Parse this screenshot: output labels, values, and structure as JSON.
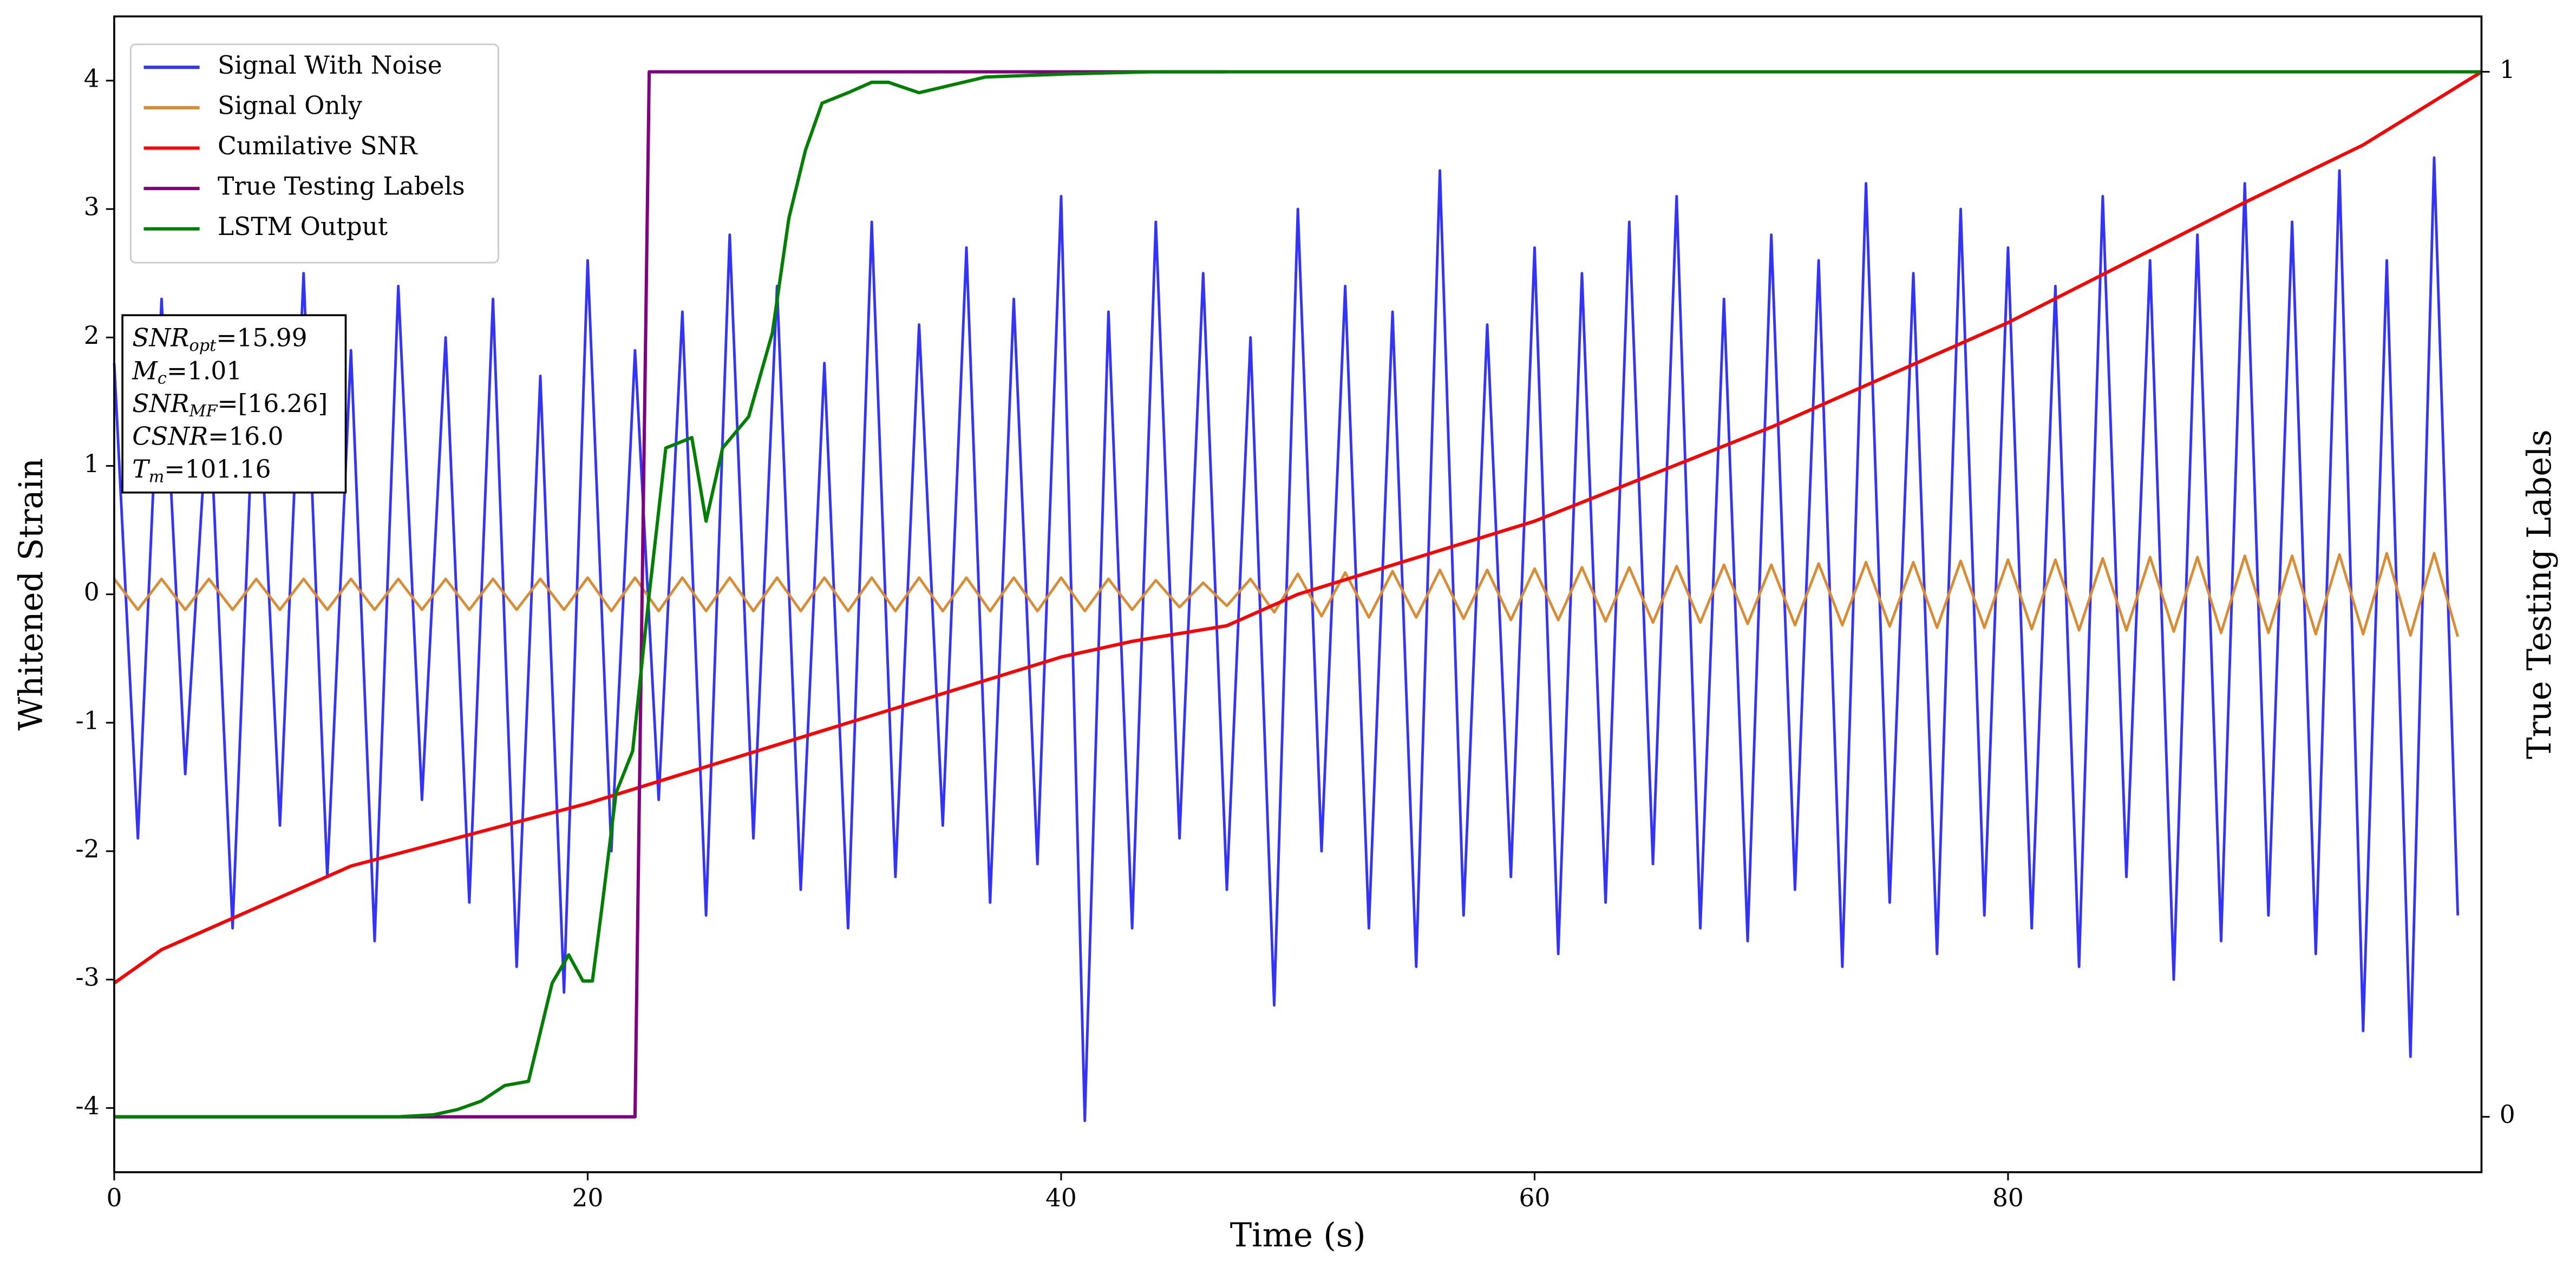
{
  "chart_data": {
    "type": "line",
    "xlabel": "Time (s)",
    "ylabel": "Whitened Strain",
    "y2label": "True Testing Labels",
    "xlim": [
      0,
      100
    ],
    "xticks": [
      0,
      20,
      40,
      60,
      80
    ],
    "ylim": [
      -4.5,
      4.5
    ],
    "yticks": [
      -4,
      -3,
      -2,
      -1,
      0,
      1,
      2,
      3,
      4
    ],
    "y2lim": [
      -0.053,
      1.053
    ],
    "y2ticks": [
      0,
      1
    ],
    "legend": "upper left",
    "annotation": [
      {
        "var": "SNR",
        "sub": "opt",
        "value": "=15.99"
      },
      {
        "var": "M",
        "sub": "c",
        "value": "=1.01"
      },
      {
        "var": "SNR",
        "sub": "MF",
        "value": "=[16.26]"
      },
      {
        "var": "CSNR",
        "value": "=16.0"
      },
      {
        "var": "T",
        "sub": "m",
        "value": "=101.16"
      }
    ],
    "series": [
      {
        "name": "Signal With Noise",
        "color": "#3333ff",
        "x": [
          0,
          1,
          2,
          3,
          4,
          5,
          6,
          7,
          8,
          9,
          10,
          11,
          12,
          13,
          14,
          15,
          16,
          17,
          18,
          19,
          20,
          21,
          22,
          23,
          24,
          25,
          26,
          27,
          28,
          29,
          30,
          31,
          32,
          33,
          34,
          35,
          36,
          37,
          38,
          39,
          40,
          41,
          42,
          43,
          44,
          45,
          46,
          47,
          48,
          49,
          50,
          51,
          52,
          53,
          54,
          55,
          56,
          57,
          58,
          59,
          60,
          61,
          62,
          63,
          64,
          65,
          66,
          67,
          68,
          69,
          70,
          71,
          72,
          73,
          74,
          75,
          76,
          77,
          78,
          79,
          80,
          81,
          82,
          83,
          84,
          85,
          86,
          87,
          88,
          89,
          90,
          91,
          92,
          93,
          94,
          95,
          96,
          97,
          98,
          99
        ],
        "values": [
          1.8,
          -1.9,
          2.3,
          -1.4,
          1.6,
          -2.6,
          2.1,
          -1.8,
          2.5,
          -2.2,
          1.9,
          -2.7,
          2.4,
          -1.6,
          2.0,
          -2.4,
          2.3,
          -2.9,
          1.7,
          -3.1,
          2.6,
          -2.0,
          1.9,
          -1.6,
          2.2,
          -2.5,
          2.8,
          -1.9,
          2.4,
          -2.3,
          1.8,
          -2.6,
          2.9,
          -2.2,
          2.1,
          -1.8,
          2.7,
          -2.4,
          2.3,
          -2.1,
          3.1,
          -4.1,
          2.2,
          -2.6,
          2.9,
          -1.9,
          2.5,
          -2.3,
          2.0,
          -3.2,
          3.0,
          -2.0,
          2.4,
          -2.6,
          2.2,
          -2.9,
          3.3,
          -2.5,
          2.1,
          -2.2,
          2.7,
          -2.8,
          2.5,
          -2.4,
          2.9,
          -2.1,
          3.1,
          -2.6,
          2.3,
          -2.7,
          2.8,
          -2.3,
          2.6,
          -2.9,
          3.2,
          -2.4,
          2.5,
          -2.8,
          3.0,
          -2.5,
          2.7,
          -2.6,
          2.4,
          -2.9,
          3.1,
          -2.2,
          2.6,
          -3.0,
          2.8,
          -2.7,
          3.2,
          -2.5,
          2.9,
          -2.8,
          3.3,
          -3.4,
          2.6,
          -3.6,
          3.4,
          -2.5
        ]
      },
      {
        "name": "Signal Only",
        "color": "#d98c32",
        "x": [
          0,
          1,
          2,
          3,
          4,
          5,
          6,
          7,
          8,
          9,
          10,
          11,
          12,
          13,
          14,
          15,
          16,
          17,
          18,
          19,
          20,
          21,
          22,
          23,
          24,
          25,
          26,
          27,
          28,
          29,
          30,
          31,
          32,
          33,
          34,
          35,
          36,
          37,
          38,
          39,
          40,
          41,
          42,
          43,
          44,
          45,
          46,
          47,
          48,
          49,
          50,
          51,
          52,
          53,
          54,
          55,
          56,
          57,
          58,
          59,
          60,
          61,
          62,
          63,
          64,
          65,
          66,
          67,
          68,
          69,
          70,
          71,
          72,
          73,
          74,
          75,
          76,
          77,
          78,
          79,
          80,
          81,
          82,
          83,
          84,
          85,
          86,
          87,
          88,
          89,
          90,
          91,
          92,
          93,
          94,
          95,
          96,
          97,
          98,
          99
        ],
        "values": [
          0.12,
          -0.12,
          0.12,
          -0.12,
          0.12,
          -0.12,
          0.12,
          -0.12,
          0.12,
          -0.12,
          0.12,
          -0.12,
          0.12,
          -0.12,
          0.12,
          -0.12,
          0.12,
          -0.12,
          0.12,
          -0.12,
          0.13,
          -0.13,
          0.13,
          -0.13,
          0.13,
          -0.13,
          0.13,
          -0.13,
          0.13,
          -0.13,
          0.13,
          -0.13,
          0.13,
          -0.13,
          0.13,
          -0.13,
          0.13,
          -0.13,
          0.13,
          -0.13,
          0.13,
          -0.13,
          0.12,
          -0.12,
          0.11,
          -0.1,
          0.09,
          -0.09,
          0.12,
          -0.14,
          0.16,
          -0.17,
          0.17,
          -0.18,
          0.18,
          -0.18,
          0.19,
          -0.19,
          0.19,
          -0.2,
          0.2,
          -0.2,
          0.21,
          -0.21,
          0.21,
          -0.22,
          0.22,
          -0.22,
          0.23,
          -0.23,
          0.23,
          -0.24,
          0.24,
          -0.24,
          0.25,
          -0.25,
          0.25,
          -0.26,
          0.26,
          -0.26,
          0.27,
          -0.27,
          0.27,
          -0.28,
          0.28,
          -0.28,
          0.29,
          -0.29,
          0.29,
          -0.3,
          0.3,
          -0.3,
          0.3,
          -0.31,
          0.31,
          -0.31,
          0.32,
          -0.32,
          0.32,
          -0.33
        ]
      },
      {
        "name": "Cumilative SNR",
        "color": "#ff0000",
        "axis": "y2",
        "x": [
          0,
          2,
          10,
          20,
          30,
          40,
          43,
          47,
          50,
          60,
          70,
          80,
          90,
          95,
          100
        ],
        "values": [
          0.128,
          0.16,
          0.24,
          0.3,
          0.37,
          0.44,
          0.455,
          0.47,
          0.5,
          0.57,
          0.66,
          0.76,
          0.875,
          0.93,
          1.0
        ]
      },
      {
        "name": "True Testing Labels",
        "color": "#800080",
        "axis": "y2",
        "x": [
          0,
          22,
          22.6,
          47
        ],
        "values": [
          0,
          0,
          1,
          1
        ]
      },
      {
        "name": "LSTM Output",
        "color": "#008000",
        "axis": "y2",
        "x": [
          0,
          12,
          13.5,
          14.5,
          15.5,
          16.5,
          17.5,
          18.5,
          19.2,
          19.8,
          20.2,
          20.6,
          21.2,
          21.9,
          22.6,
          23.3,
          24.4,
          25.0,
          25.7,
          26.8,
          27.8,
          28.5,
          29.2,
          29.9,
          31,
          32,
          32.7,
          34,
          36.8,
          40.3,
          43.8,
          100
        ],
        "values": [
          0,
          0,
          0.002,
          0.007,
          0.015,
          0.03,
          0.034,
          0.128,
          0.155,
          0.13,
          0.13,
          0.2,
          0.31,
          0.35,
          0.5,
          0.64,
          0.65,
          0.57,
          0.64,
          0.67,
          0.75,
          0.86,
          0.925,
          0.97,
          0.98,
          0.99,
          0.99,
          0.98,
          0.995,
          0.998,
          1.0,
          1.0
        ]
      }
    ]
  }
}
